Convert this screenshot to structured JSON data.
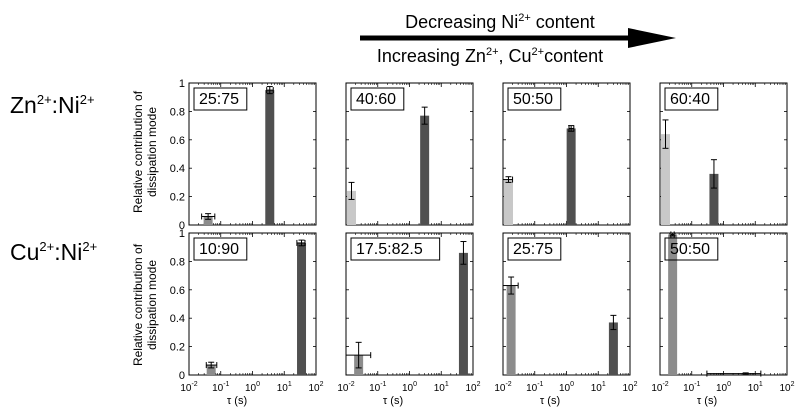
{
  "header": {
    "line1_text": "Decreasing Ni",
    "line1_sup": "2+",
    "line1_tail": " content",
    "line2_a": "Increasing Zn",
    "line2_sup1": "2+",
    "line2_b": ", Cu",
    "line2_sup2": "2+",
    "line2_c": "content"
  },
  "row_labels": [
    {
      "a": "Zn",
      "sup_a": "2+",
      "sep": ":Ni",
      "sup_b": "2+"
    },
    {
      "a": "Cu",
      "sup_a": "2+",
      "sep": ":Ni",
      "sup_b": "2+"
    }
  ],
  "ylabel_line1": "Relative contribution of",
  "ylabel_line2": "dissipation mode",
  "xlabel": "τ (s)",
  "y_ticks": [
    "0",
    "0.2",
    "0.4",
    "0.6",
    "0.8",
    "1"
  ],
  "x_ticks": [
    {
      "base": "10",
      "exp": "-2"
    },
    {
      "base": "10",
      "exp": "-1"
    },
    {
      "base": "10",
      "exp": "0"
    },
    {
      "base": "10",
      "exp": "1"
    },
    {
      "base": "10",
      "exp": "2"
    }
  ],
  "colors": {
    "light": "#c8c8c8",
    "mid": "#8c8c8c",
    "dark": "#505050",
    "arrow": "#000000"
  },
  "chart_data": [
    {
      "type": "bar",
      "row": 0,
      "col": 0,
      "label": "25:75",
      "xscale": "log",
      "xlim": [
        0.01,
        100
      ],
      "ylim": [
        0,
        1
      ],
      "bars": [
        {
          "tau": 0.04,
          "value": 0.06,
          "err_y": 0.02,
          "x_err": [
            0.025,
            0.065
          ],
          "color": "mid"
        },
        {
          "tau": 3.5,
          "value": 0.95,
          "err_y": 0.025,
          "x_err": [
            2.8,
            4.5
          ],
          "color": "dark"
        }
      ]
    },
    {
      "type": "bar",
      "row": 0,
      "col": 1,
      "label": "40:60",
      "xscale": "log",
      "xlim": [
        0.01,
        100
      ],
      "ylim": [
        0,
        1
      ],
      "bars": [
        {
          "tau": 0.012,
          "value": 0.24,
          "err_y": 0.06,
          "x_err": null,
          "color": "light"
        },
        {
          "tau": 3.0,
          "value": 0.77,
          "err_y": 0.06,
          "x_err": null,
          "color": "dark"
        }
      ]
    },
    {
      "type": "bar",
      "row": 0,
      "col": 2,
      "label": "50:50",
      "xscale": "log",
      "xlim": [
        0.01,
        100
      ],
      "ylim": [
        0,
        1
      ],
      "bars": [
        {
          "tau": 0.012,
          "value": 0.32,
          "err_y": 0.02,
          "x_err": [
            0.01,
            0.02
          ],
          "color": "light"
        },
        {
          "tau": 1.4,
          "value": 0.68,
          "err_y": 0.02,
          "x_err": [
            1.2,
            1.7
          ],
          "color": "dark"
        }
      ]
    },
    {
      "type": "bar",
      "row": 0,
      "col": 3,
      "label": "60:40",
      "xscale": "log",
      "xlim": [
        0.01,
        100
      ],
      "ylim": [
        0,
        1
      ],
      "bars": [
        {
          "tau": 0.011,
          "value": 0.64,
          "err_y": 0.1,
          "x_err": null,
          "color": "light"
        },
        {
          "tau": 0.5,
          "value": 0.36,
          "err_y": 0.1,
          "x_err": null,
          "color": "dark"
        }
      ]
    },
    {
      "type": "bar",
      "row": 1,
      "col": 0,
      "label": "10:90",
      "xscale": "log",
      "xlim": [
        0.01,
        100
      ],
      "ylim": [
        0,
        1
      ],
      "bars": [
        {
          "tau": 0.05,
          "value": 0.07,
          "err_y": 0.02,
          "x_err": [
            0.035,
            0.075
          ],
          "color": "mid"
        },
        {
          "tau": 35,
          "value": 0.93,
          "err_y": 0.02,
          "x_err": [
            25,
            45
          ],
          "color": "dark"
        }
      ]
    },
    {
      "type": "bar",
      "row": 1,
      "col": 1,
      "label": "17.5:82.5",
      "xscale": "log",
      "xlim": [
        0.01,
        100
      ],
      "ylim": [
        0,
        1
      ],
      "bars": [
        {
          "tau": 0.025,
          "value": 0.14,
          "err_y": 0.09,
          "x_err": [
            0.01,
            0.06
          ],
          "color": "mid"
        },
        {
          "tau": 50,
          "value": 0.86,
          "err_y": 0.08,
          "x_err": null,
          "color": "dark"
        }
      ]
    },
    {
      "type": "bar",
      "row": 1,
      "col": 2,
      "label": "25:75",
      "xscale": "log",
      "xlim": [
        0.01,
        100
      ],
      "ylim": [
        0,
        1
      ],
      "bars": [
        {
          "tau": 0.018,
          "value": 0.63,
          "err_y": 0.06,
          "x_err": [
            0.01,
            0.03
          ],
          "color": "mid"
        },
        {
          "tau": 30,
          "value": 0.37,
          "err_y": 0.05,
          "x_err": null,
          "color": "dark"
        }
      ]
    },
    {
      "type": "bar",
      "row": 1,
      "col": 3,
      "label": "50:50",
      "xscale": "log",
      "xlim": [
        0.01,
        100
      ],
      "ylim": [
        0,
        1
      ],
      "bars": [
        {
          "tau": 0.025,
          "value": 0.99,
          "err_y": 0.01,
          "x_err": [
            0.022,
            0.028
          ],
          "color": "mid"
        },
        {
          "tau": 5,
          "value": 0.01,
          "err_y": 0.005,
          "x_err": [
            0.3,
            15
          ],
          "color": "dark"
        }
      ]
    }
  ]
}
